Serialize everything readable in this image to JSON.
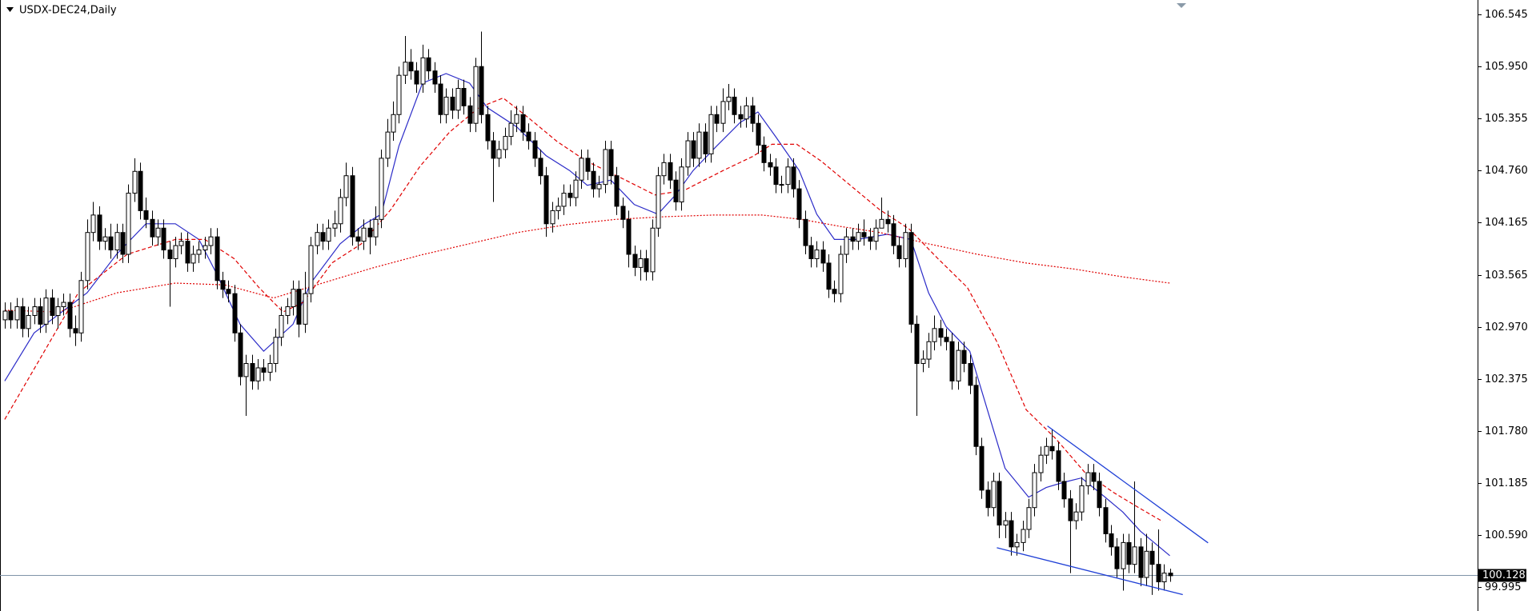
{
  "chart_data": {
    "type": "candlestick",
    "title": "USDX-DEC24,Daily",
    "open": [
      103.05,
      103.15,
      103.05,
      103.2,
      102.95,
      103.1,
      103.2,
      103.0,
      103.3,
      103.1,
      103.2,
      103.25,
      102.95,
      102.9,
      103.5,
      104.05,
      104.25,
      103.95,
      104.0,
      103.85,
      104.05,
      103.8,
      104.5,
      104.75,
      104.3,
      104.2,
      104.0,
      104.1,
      103.85,
      103.75,
      103.9,
      103.95,
      103.7,
      103.8,
      103.85,
      103.9,
      104.0,
      103.5,
      103.4,
      103.35,
      102.9,
      102.4,
      102.55,
      102.35,
      102.5,
      102.45,
      102.55,
      102.85,
      103.1,
      103.2,
      103.4,
      103.0,
      103.35,
      103.9,
      104.05,
      103.95,
      104.1,
      104.15,
      104.45,
      104.7,
      104.0,
      103.95,
      104.1,
      104.0,
      104.2,
      104.9,
      105.2,
      105.4,
      105.85,
      106.0,
      105.9,
      105.75,
      106.05,
      105.9,
      105.75,
      105.4,
      105.6,
      105.45,
      105.7,
      105.5,
      105.3,
      105.95,
      105.4,
      105.1,
      104.9,
      105.0,
      105.15,
      105.3,
      105.4,
      105.2,
      105.1,
      104.9,
      104.7,
      104.15,
      104.3,
      104.35,
      104.5,
      104.45,
      104.65,
      104.9,
      104.75,
      104.55,
      104.6,
      105.0,
      104.7,
      104.35,
      104.2,
      103.8,
      103.65,
      103.75,
      103.6,
      104.1,
      104.7,
      104.85,
      104.65,
      104.4,
      104.8,
      105.1,
      104.9,
      105.2,
      104.95,
      105.4,
      105.3,
      105.55,
      105.6,
      105.4,
      105.35,
      105.5,
      105.3,
      105.05,
      104.85,
      104.8,
      104.6,
      104.6,
      104.8,
      104.55,
      104.2,
      103.9,
      103.75,
      103.85,
      103.7,
      103.4,
      103.35,
      103.8,
      104.0,
      103.95,
      104.05,
      104.0,
      103.95,
      104.1,
      104.2,
      104.15,
      103.9,
      103.75,
      104.05,
      103.0,
      102.55,
      102.6,
      102.8,
      102.95,
      102.85,
      102.8,
      102.35,
      102.7,
      102.55,
      102.3,
      101.6,
      101.1,
      100.9,
      101.2,
      100.7,
      100.75,
      100.45,
      100.5,
      100.65,
      100.9,
      101.3,
      101.5,
      101.6,
      101.55,
      101.2,
      101.0,
      100.75,
      100.85,
      101.15,
      101.3,
      101.2,
      100.9,
      100.6,
      100.45,
      100.2,
      100.5,
      100.25,
      100.45,
      100.1,
      100.4,
      100.25,
      100.05,
      100.15
    ],
    "high": [
      103.25,
      103.25,
      103.3,
      103.3,
      103.2,
      103.3,
      103.3,
      103.4,
      103.4,
      103.3,
      103.35,
      103.35,
      103.1,
      103.6,
      104.2,
      104.4,
      104.35,
      104.1,
      104.15,
      104.15,
      104.15,
      104.6,
      104.9,
      104.85,
      104.45,
      104.3,
      104.2,
      104.2,
      103.95,
      104.0,
      104.05,
      104.05,
      103.9,
      103.95,
      104.0,
      104.1,
      104.1,
      103.6,
      103.5,
      103.45,
      103.0,
      102.65,
      102.65,
      102.6,
      102.6,
      102.65,
      102.95,
      103.2,
      103.3,
      103.5,
      103.5,
      103.6,
      104.0,
      104.15,
      104.15,
      104.2,
      104.3,
      104.55,
      104.85,
      104.8,
      104.1,
      104.2,
      104.2,
      104.35,
      105.0,
      105.35,
      105.55,
      105.95,
      106.3,
      106.15,
      106.0,
      106.2,
      106.15,
      106.0,
      105.85,
      105.7,
      105.7,
      105.8,
      105.8,
      105.6,
      106.05,
      106.35,
      105.5,
      105.2,
      105.1,
      105.25,
      105.45,
      105.5,
      105.5,
      105.3,
      105.2,
      105.0,
      104.8,
      104.4,
      104.45,
      104.6,
      104.6,
      104.75,
      105.0,
      105.0,
      104.85,
      104.7,
      105.1,
      105.1,
      104.8,
      104.45,
      104.3,
      103.9,
      103.85,
      103.85,
      104.2,
      104.8,
      104.95,
      104.95,
      104.75,
      104.9,
      105.2,
      105.2,
      105.3,
      105.3,
      105.5,
      105.5,
      105.7,
      105.75,
      105.7,
      105.5,
      105.6,
      105.6,
      105.4,
      105.15,
      104.95,
      104.9,
      104.7,
      104.9,
      104.9,
      104.65,
      104.3,
      104.0,
      103.95,
      103.95,
      103.8,
      103.5,
      103.9,
      104.1,
      104.1,
      104.15,
      104.2,
      104.1,
      104.2,
      104.45,
      104.3,
      104.25,
      104.0,
      104.15,
      104.15,
      103.1,
      102.7,
      102.9,
      103.1,
      103.05,
      102.95,
      102.9,
      102.8,
      102.8,
      102.65,
      102.4,
      101.7,
      101.2,
      101.3,
      101.3,
      100.85,
      100.85,
      100.6,
      100.75,
      101.0,
      101.4,
      101.6,
      101.7,
      101.8,
      101.65,
      101.3,
      101.1,
      100.95,
      101.25,
      101.4,
      101.4,
      101.3,
      101.0,
      100.7,
      100.55,
      100.6,
      100.6,
      101.2,
      100.55,
      100.6,
      100.5,
      100.65,
      100.25,
      100.2
    ],
    "low": [
      102.95,
      102.95,
      102.95,
      102.85,
      102.85,
      103.0,
      102.9,
      102.9,
      103.0,
      102.95,
      103.1,
      102.85,
      102.75,
      102.8,
      103.4,
      103.95,
      103.85,
      103.85,
      103.75,
      103.75,
      103.7,
      103.7,
      104.4,
      104.2,
      104.1,
      103.9,
      103.9,
      103.75,
      103.2,
      103.65,
      103.8,
      103.6,
      103.6,
      103.7,
      103.75,
      103.8,
      103.4,
      103.3,
      103.25,
      102.8,
      102.3,
      101.95,
      102.25,
      102.25,
      102.35,
      102.35,
      102.45,
      102.75,
      103.0,
      103.1,
      102.85,
      102.9,
      103.25,
      103.8,
      103.85,
      103.85,
      104.0,
      104.05,
      104.35,
      103.9,
      103.85,
      103.85,
      103.8,
      103.9,
      104.1,
      104.8,
      105.1,
      105.3,
      105.75,
      105.8,
      105.65,
      105.65,
      105.8,
      105.65,
      105.3,
      105.3,
      105.35,
      105.35,
      105.4,
      105.2,
      105.2,
      105.3,
      105.0,
      104.4,
      104.8,
      104.9,
      105.05,
      105.2,
      105.1,
      105.0,
      104.8,
      104.6,
      104.0,
      104.05,
      104.2,
      104.25,
      104.35,
      104.35,
      104.55,
      104.65,
      104.45,
      104.45,
      104.5,
      104.6,
      104.25,
      104.1,
      103.65,
      103.55,
      103.5,
      103.5,
      103.5,
      104.0,
      104.6,
      104.55,
      104.3,
      104.3,
      104.7,
      104.8,
      104.8,
      104.85,
      104.85,
      105.2,
      105.2,
      105.45,
      105.3,
      105.25,
      105.25,
      105.2,
      104.95,
      104.75,
      104.7,
      104.5,
      104.5,
      104.5,
      104.45,
      104.1,
      103.8,
      103.65,
      103.65,
      103.6,
      103.3,
      103.25,
      103.25,
      103.7,
      103.85,
      103.85,
      103.9,
      103.85,
      103.85,
      104.1,
      104.05,
      103.8,
      103.65,
      103.65,
      102.9,
      101.95,
      102.45,
      102.5,
      102.7,
      102.75,
      102.7,
      102.25,
      102.25,
      102.45,
      102.2,
      101.5,
      101.0,
      100.8,
      100.8,
      100.55,
      100.55,
      100.35,
      100.35,
      100.4,
      100.55,
      100.8,
      101.2,
      101.4,
      101.45,
      101.1,
      100.9,
      100.15,
      100.65,
      100.75,
      101.05,
      101.1,
      100.8,
      100.5,
      100.35,
      100.1,
      99.95,
      100.15,
      100.15,
      100.0,
      100.0,
      99.9,
      99.95,
      99.95,
      100.05
    ],
    "close": [
      103.15,
      103.05,
      103.2,
      102.95,
      103.1,
      103.2,
      103.0,
      103.3,
      103.1,
      103.2,
      103.25,
      102.95,
      102.9,
      103.5,
      104.05,
      104.25,
      103.95,
      104.0,
      103.85,
      104.05,
      103.8,
      104.5,
      104.75,
      104.3,
      104.2,
      104.0,
      104.1,
      103.85,
      103.75,
      103.9,
      103.95,
      103.7,
      103.8,
      103.85,
      103.9,
      104.0,
      103.5,
      103.4,
      103.35,
      102.9,
      102.4,
      102.55,
      102.35,
      102.5,
      102.45,
      102.55,
      102.85,
      103.1,
      103.2,
      103.4,
      103.0,
      103.35,
      103.9,
      104.05,
      103.95,
      104.1,
      104.15,
      104.45,
      104.7,
      104.0,
      103.95,
      104.1,
      104.0,
      104.2,
      104.9,
      105.2,
      105.4,
      105.85,
      106.0,
      105.9,
      105.75,
      106.05,
      105.9,
      105.75,
      105.4,
      105.6,
      105.45,
      105.7,
      105.5,
      105.3,
      105.95,
      105.4,
      105.1,
      104.9,
      105.0,
      105.15,
      105.3,
      105.4,
      105.2,
      105.1,
      104.9,
      104.7,
      104.15,
      104.3,
      104.35,
      104.5,
      104.45,
      104.65,
      104.9,
      104.75,
      104.55,
      104.6,
      105.0,
      104.7,
      104.35,
      104.2,
      103.8,
      103.65,
      103.75,
      103.6,
      104.1,
      104.7,
      104.85,
      104.65,
      104.4,
      104.8,
      105.1,
      104.9,
      105.2,
      104.95,
      105.4,
      105.3,
      105.55,
      105.6,
      105.4,
      105.35,
      105.5,
      105.3,
      105.05,
      104.85,
      104.8,
      104.6,
      104.6,
      104.8,
      104.55,
      104.2,
      103.9,
      103.75,
      103.85,
      103.7,
      103.4,
      103.35,
      103.8,
      104.0,
      103.95,
      104.05,
      104.0,
      103.95,
      104.1,
      104.2,
      104.15,
      103.9,
      103.75,
      104.05,
      103.0,
      102.55,
      102.6,
      102.8,
      102.95,
      102.85,
      102.8,
      102.35,
      102.7,
      102.55,
      102.3,
      101.6,
      101.1,
      100.9,
      101.2,
      100.7,
      100.75,
      100.45,
      100.5,
      100.65,
      100.9,
      101.3,
      101.5,
      101.6,
      101.55,
      101.2,
      101.0,
      100.75,
      100.85,
      101.15,
      101.3,
      101.2,
      100.9,
      100.6,
      100.45,
      100.2,
      100.5,
      100.25,
      100.45,
      100.1,
      100.4,
      100.25,
      100.05,
      100.15,
      100.12
    ],
    "xlim": [
      -0.8,
      250.3
    ],
    "ylim": [
      99.716,
      106.712
    ],
    "yticks": [
      106.545,
      {
        "value": 105.95,
        "label": "105.950"
      },
      105.355,
      {
        "value": 104.76,
        "label": "104.760"
      },
      104.165,
      103.565,
      {
        "value": 102.97,
        "label": "102.970"
      },
      102.375,
      {
        "value": 101.78,
        "label": "101.780"
      },
      101.185,
      {
        "value": 100.59,
        "label": "100.590"
      },
      99.995
    ],
    "bull_color": "#ffffff",
    "bear_color": "#000000",
    "lines": [
      {
        "color": "#2c2cc8",
        "style": "solid",
        "x": [
          0,
          5,
          14,
          19,
          24,
          29,
          33,
          36,
          40,
          44,
          49,
          52,
          57,
          61,
          64,
          67,
          71,
          75,
          79,
          82,
          87,
          92,
          96,
          99,
          103,
          107,
          111,
          114,
          117,
          121,
          125,
          128,
          131,
          135,
          138,
          141,
          145,
          150,
          154,
          157,
          160,
          164,
          167,
          170,
          174,
          177,
          180,
          183,
          187,
          190,
          193,
          198
        ],
        "values": [
          102.35,
          102.9,
          103.36,
          103.8,
          104.15,
          104.15,
          103.97,
          103.58,
          103.0,
          102.69,
          103.0,
          103.47,
          103.92,
          104.14,
          104.26,
          105.04,
          105.76,
          105.87,
          105.76,
          105.48,
          105.26,
          104.93,
          104.76,
          104.59,
          104.65,
          104.37,
          104.26,
          104.48,
          104.76,
          105.04,
          105.31,
          105.43,
          105.15,
          104.76,
          104.26,
          103.97,
          103.97,
          104.03,
          103.97,
          103.36,
          102.97,
          102.69,
          102.02,
          101.35,
          101.02,
          101.13,
          101.19,
          101.24,
          101.02,
          100.85,
          100.63,
          100.35
        ]
      },
      {
        "color": "#e00000",
        "style": "dashed",
        "x": [
          0,
          5.8,
          12.5,
          20.8,
          29,
          34,
          39,
          43.2,
          47.3,
          50.7,
          55.6,
          60.6,
          65.6,
          70.6,
          75.6,
          80.6,
          84.7,
          88.9,
          93.9,
          98.8,
          105.5,
          110.5,
          115.4,
          122.1,
          127.1,
          130.4,
          134.6,
          138.7,
          143.7,
          148.7,
          153.7,
          158.6,
          163.6,
          168.6,
          173.6,
          178.6,
          183.6,
          188.5,
          192.7,
          196.8
        ],
        "values": [
          101.91,
          102.58,
          103.36,
          103.8,
          103.97,
          103.97,
          103.75,
          103.42,
          103.14,
          103.25,
          103.7,
          103.92,
          104.31,
          104.81,
          105.2,
          105.48,
          105.59,
          105.37,
          105.09,
          104.87,
          104.65,
          104.48,
          104.53,
          104.76,
          104.92,
          105.06,
          105.06,
          104.87,
          104.59,
          104.31,
          104.09,
          103.75,
          103.42,
          102.8,
          102.02,
          101.69,
          101.3,
          101.07,
          100.9,
          100.74
        ]
      },
      {
        "color": "#e00000",
        "style": "dotted",
        "x": [
          0,
          9.1,
          19.1,
          29,
          37.4,
          45.7,
          54,
          62.3,
          70.6,
          78.9,
          87.2,
          95.5,
          103.8,
          112.1,
          120.4,
          128.7,
          135.4,
          142,
          148.7,
          157,
          165.3,
          173.6,
          181.9,
          190.2,
          198
        ],
        "values": [
          103.16,
          103.14,
          103.36,
          103.47,
          103.45,
          103.3,
          103.47,
          103.64,
          103.79,
          103.92,
          104.05,
          104.14,
          104.2,
          104.23,
          104.25,
          104.25,
          104.2,
          104.12,
          104.05,
          103.92,
          103.8,
          103.7,
          103.63,
          103.54,
          103.47
        ]
      }
    ],
    "trendlines": [
      {
        "color": "#1f3fd6",
        "x": [
          177.2,
          204.5
        ],
        "values": [
          101.835,
          100.496
        ]
      },
      {
        "color": "#1f3fd6",
        "x": [
          168.6,
          200.2
        ],
        "values": [
          100.44,
          99.904
        ]
      }
    ],
    "last_price": 100.128
  }
}
